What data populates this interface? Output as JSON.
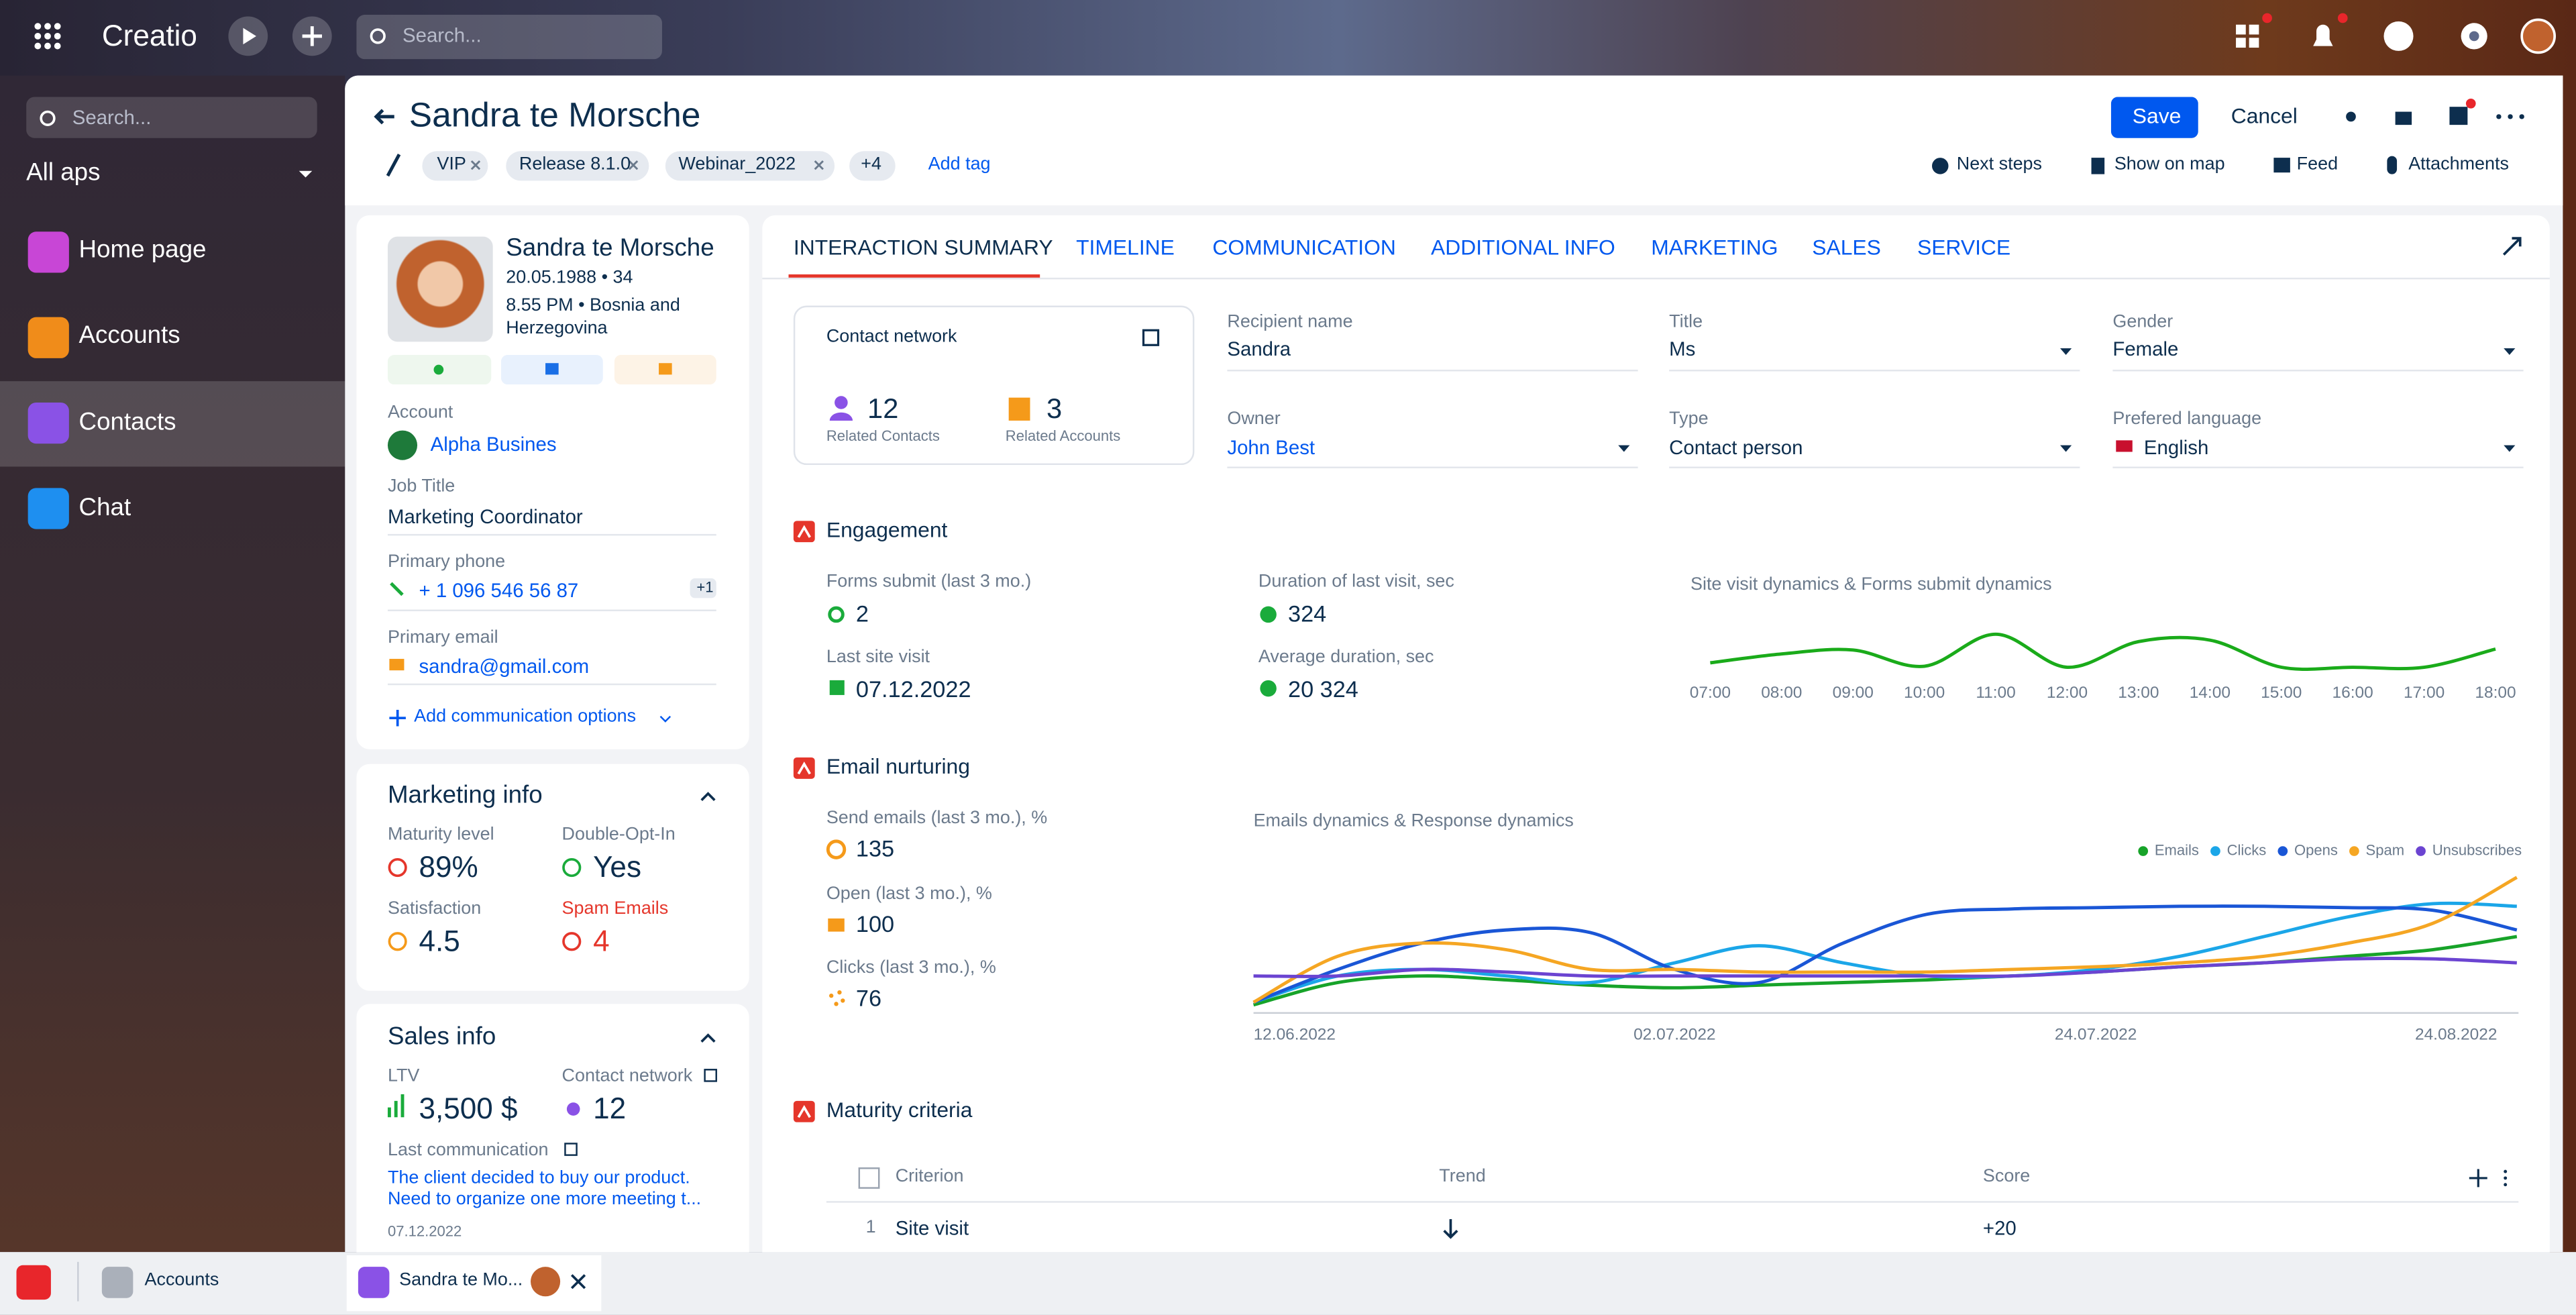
{
  "topbar": {
    "brand": "Creatio",
    "search": "Search..."
  },
  "sidebar": {
    "search": "Search...",
    "section": "All aps",
    "items": [
      "Home page",
      "Accounts",
      "Contacts",
      "Chat"
    ]
  },
  "header": {
    "title": "Sandra te Morsche",
    "tags": [
      "VIP",
      "Release 8.1.0",
      "Webinar_2022"
    ],
    "more_tags": "+4",
    "add_tag": "Add tag",
    "save": "Save",
    "cancel": "Cancel",
    "actions": [
      "Next steps",
      "Show on map",
      "Feed",
      "Attachments"
    ]
  },
  "profile": {
    "name": "Sandra te Morsche",
    "birth": "20.05.1988 • 34",
    "time": "8.55 PM • Bosnia and Herzegovina",
    "fields": [
      {
        "label": "Account",
        "value": "Alpha Busines"
      },
      {
        "label": "Job Title",
        "value": "Marketing Coordinator"
      },
      {
        "label": "Primary phone",
        "value": "+ 1 096 546 56 87",
        "badge": "+1"
      },
      {
        "label": "Primary email",
        "value": "sandra@gmail.com"
      }
    ],
    "add_comm": "Add communication options"
  },
  "marketing": {
    "title": "Marketing info",
    "items": [
      {
        "label": "Maturity level",
        "value": "89%"
      },
      {
        "label": "Double-Opt-In",
        "value": "Yes"
      },
      {
        "label": "Satisfaction",
        "value": "4.5"
      },
      {
        "label": "Spam Emails",
        "value": "4"
      }
    ]
  },
  "sales": {
    "title": "Sales info",
    "items": [
      {
        "label": "LTV",
        "value": "3,500 $"
      },
      {
        "label": "Contact network",
        "value": "12"
      }
    ],
    "last_label": "Last communication",
    "last_text": "The client decided to buy our product. Need to  organize one more meeting t...",
    "last_date": "07.12.2022"
  },
  "tabs": [
    "INTERACTION SUMMARY",
    "TIMELINE",
    "COMMUNICATION",
    "ADDITIONAL INFO",
    "MARKETING",
    "SALES",
    "SERVICE"
  ],
  "network": {
    "title": "Contact network",
    "contacts": "12",
    "contacts_label": "Related Contacts",
    "accounts": "3",
    "accounts_label": "Related Accounts"
  },
  "fields": [
    {
      "label": "Recipient name",
      "value": "Sandra"
    },
    {
      "label": "Title",
      "value": "Ms"
    },
    {
      "label": "Gender",
      "value": "Female"
    },
    {
      "label": "Owner",
      "value": "John Best"
    },
    {
      "label": "Type",
      "value": "Contact person"
    },
    {
      "label": "Prefered language",
      "value": "English"
    }
  ],
  "engagement": {
    "title": "Engagement",
    "metrics": [
      {
        "label": "Forms submit (last 3 mo.)",
        "value": "2"
      },
      {
        "label": "Duration of last visit, sec",
        "value": "324"
      },
      {
        "label": "Last site visit",
        "value": "07.12.2022"
      },
      {
        "label": "Average duration, sec",
        "value": "20 324"
      }
    ]
  },
  "email": {
    "title": "Email nurturing",
    "metrics": [
      {
        "label": "Send emails (last 3 mo.), %",
        "value": "135"
      },
      {
        "label": "Open (last 3 mo.), %",
        "value": "100"
      },
      {
        "label": "Clicks (last 3 mo.), %",
        "value": "76"
      }
    ]
  },
  "chart_data": [
    {
      "type": "line",
      "title": "Site visit dynamics & Forms submit dynamics",
      "categories": [
        "07:00",
        "08:00",
        "09:00",
        "10:00",
        "11:00",
        "12:00",
        "13:00",
        "14:00",
        "15:00",
        "16:00",
        "17:00",
        "18:00"
      ],
      "ylim": [
        0,
        100
      ],
      "series": [
        {
          "color": "#1aab1a",
          "values": [
            12,
            30,
            38,
            5,
            70,
            3,
            55,
            58,
            3,
            3,
            3,
            40
          ]
        }
      ]
    },
    {
      "type": "line",
      "title": "Emails dynamics & Response dynamics",
      "categories": [
        "12.06.2022",
        null,
        null,
        null,
        null,
        "02.07.2022",
        null,
        null,
        null,
        null,
        "24.07.2022",
        null,
        null,
        null,
        null,
        "24.08.2022"
      ],
      "ylim": [
        0,
        100
      ],
      "legend": "top-right",
      "series": [
        {
          "name": "Emails",
          "color": "#17a329",
          "values": [
            3,
            20,
            25,
            22,
            18,
            16,
            18,
            20,
            22,
            25,
            28,
            32,
            35,
            40,
            45,
            55
          ]
        },
        {
          "name": "Clicks",
          "color": "#1ba6e8",
          "values": [
            5,
            25,
            30,
            25,
            20,
            35,
            48,
            35,
            25,
            25,
            30,
            40,
            55,
            70,
            80,
            78
          ]
        },
        {
          "name": "Opens",
          "color": "#1a56d6",
          "values": [
            5,
            30,
            50,
            60,
            58,
            30,
            20,
            50,
            72,
            76,
            77,
            78,
            78,
            77,
            75,
            60
          ]
        },
        {
          "name": "Spam",
          "color": "#f5a623",
          "values": [
            5,
            40,
            50,
            45,
            30,
            30,
            28,
            28,
            28,
            30,
            32,
            35,
            40,
            50,
            65,
            100
          ]
        },
        {
          "name": "Unsubscribes",
          "color": "#6b44d1",
          "values": [
            25,
            25,
            30,
            28,
            25,
            25,
            25,
            25,
            25,
            25,
            28,
            32,
            35,
            38,
            38,
            35
          ]
        }
      ]
    }
  ],
  "maturity": {
    "title": "Maturity criteria",
    "columns": [
      "Criterion",
      "Trend",
      "Score"
    ],
    "rows": [
      {
        "index": "1",
        "criterion": "Site visit",
        "score": "+20"
      }
    ]
  },
  "taskbar": {
    "items": [
      "Accounts",
      "Sandra te Mo..."
    ]
  }
}
